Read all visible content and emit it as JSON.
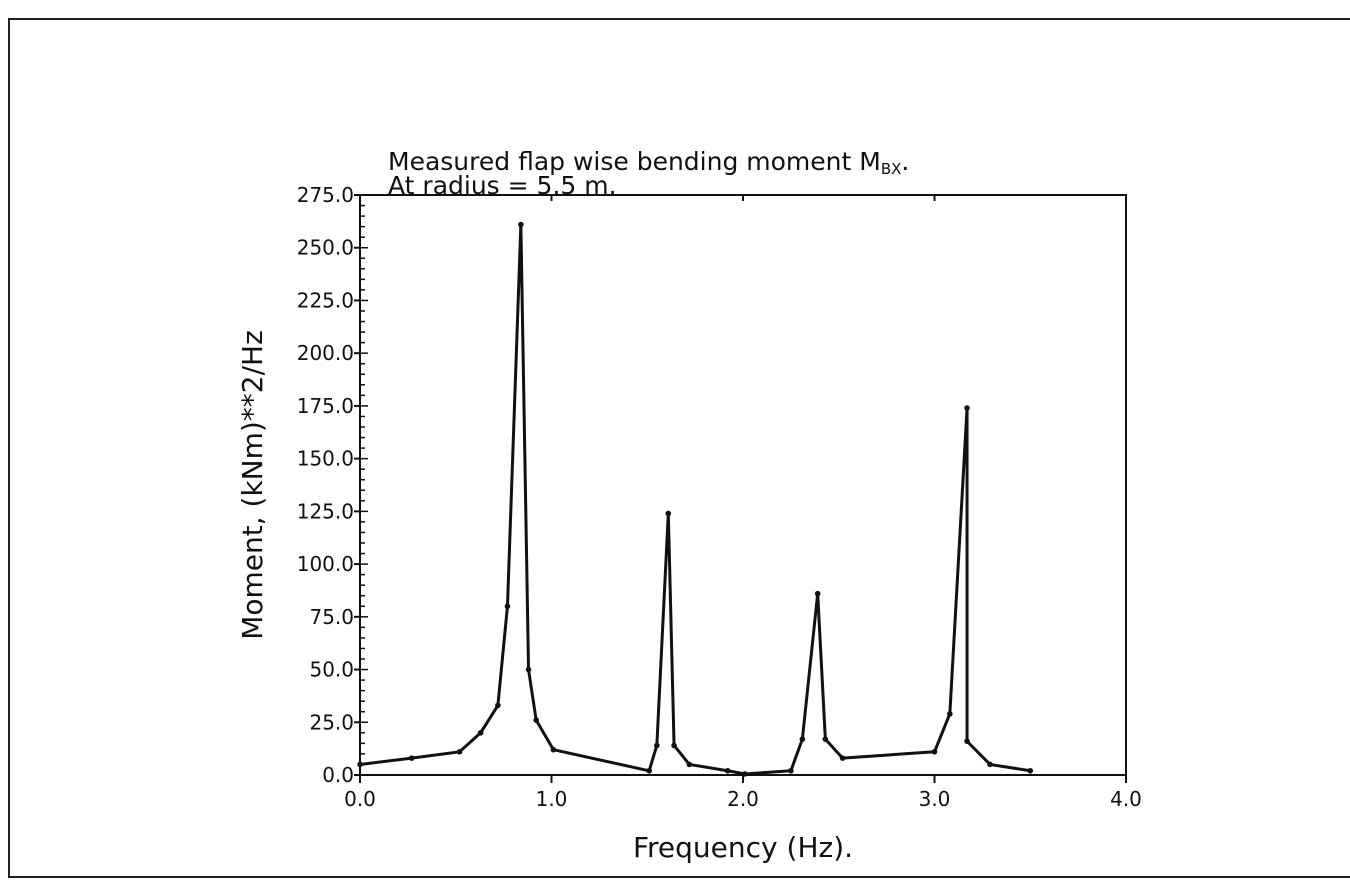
{
  "chart_data": {
    "type": "line",
    "title_lines": [
      "Measured flap wise bending moment M",
      "At radius  =  5.5  m."
    ],
    "title_subscript": "BX",
    "title_suffix": ".",
    "xlabel": "Frequency  (Hz).",
    "ylabel": "Moment,  (kNm)**2/Hz",
    "xlim": [
      0,
      4.0
    ],
    "ylim": [
      0,
      275
    ],
    "xticks": [
      "0.0",
      "1.0",
      "2.0",
      "3.0",
      "4.0"
    ],
    "yticks": [
      "0.0",
      "25.0",
      "50.0",
      "75.0",
      "100.0",
      "125.0",
      "150.0",
      "175.0",
      "200.0",
      "225.0",
      "250.0",
      "275.0"
    ],
    "grid": false,
    "line_color": "#111111",
    "series": [
      {
        "x": [
          0.0,
          0.27,
          0.52,
          0.63,
          0.72,
          0.77,
          0.84,
          0.88,
          0.92,
          1.01,
          1.51,
          1.55,
          1.61,
          1.64,
          1.72,
          1.92,
          2.01,
          2.25,
          2.31,
          2.39,
          2.43,
          2.52,
          3.0,
          3.08,
          3.17,
          3.17,
          3.29,
          3.5
        ],
        "y": [
          5,
          8,
          11,
          20,
          33,
          80,
          261,
          50,
          26,
          12,
          2,
          14,
          124,
          14,
          5,
          2,
          0.5,
          2,
          17,
          86,
          17,
          8,
          11,
          29,
          174,
          16,
          5,
          2
        ]
      }
    ]
  }
}
